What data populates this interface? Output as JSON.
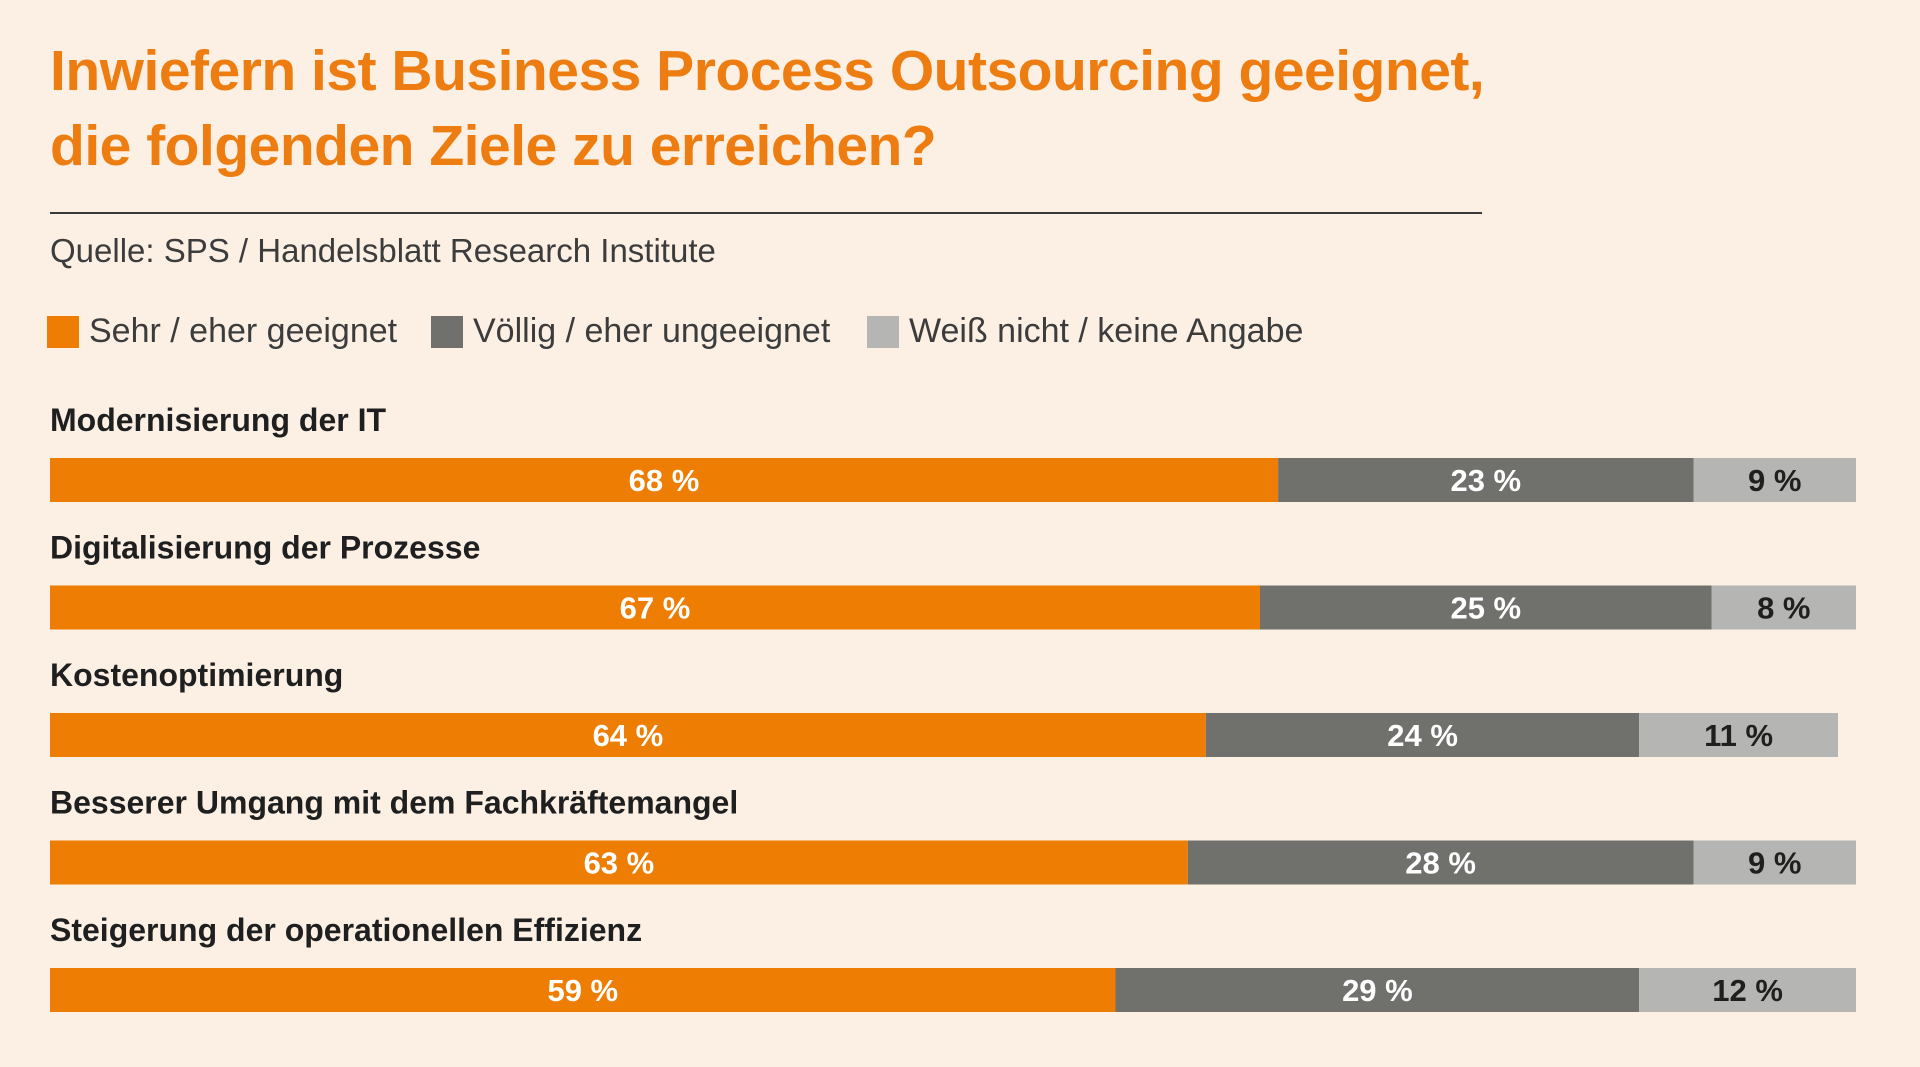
{
  "title_lines": [
    "Inwiefern ist Business Process Outsourcing geeignet,",
    "die folgenden Ziele zu erreichen?"
  ],
  "source": "Quelle: SPS / Handelsblatt Research Institute",
  "colors": {
    "background": "#fcf0e5",
    "title": "#ee7d11",
    "suitable": "#ee7d04",
    "unsuitable": "#70706d",
    "unknown": "#b5b5b3"
  },
  "chart_data": {
    "type": "bar",
    "orientation": "horizontal",
    "stacked": true,
    "title": "Inwiefern ist Business Process Outsourcing geeignet, die folgenden Ziele zu erreichen?",
    "unit": "%",
    "xlim": [
      0,
      100
    ],
    "grid": false,
    "legend_position": "top-left",
    "categories": [
      "Modernisierung der IT",
      "Digitalisierung der Prozesse",
      "Kostenoptimierung",
      "Besserer Umgang mit dem Fachkräftemangel",
      "Steigerung der operationellen Effizienz"
    ],
    "series": [
      {
        "name": "Sehr / eher geeignet",
        "color": "#ee7d04",
        "label_color": "#ffffff",
        "values": [
          68,
          67,
          64,
          63,
          59
        ]
      },
      {
        "name": "Völlig / eher ungeeignet",
        "color": "#70706d",
        "label_color": "#ffffff",
        "values": [
          23,
          25,
          24,
          28,
          29
        ]
      },
      {
        "name": "Weiß nicht / keine Angabe",
        "color": "#b5b5b3",
        "label_color": "#1f1f1f",
        "values": [
          9,
          8,
          11,
          9,
          12
        ]
      }
    ],
    "value_labels": [
      [
        "68 %",
        "23 %",
        "9 %"
      ],
      [
        "67 %",
        "25 %",
        "8 %"
      ],
      [
        "64 %",
        "24 %",
        "11 %"
      ],
      [
        "63 %",
        "28 %",
        "9 %"
      ],
      [
        "59 %",
        "29 %",
        "12 %"
      ]
    ]
  }
}
